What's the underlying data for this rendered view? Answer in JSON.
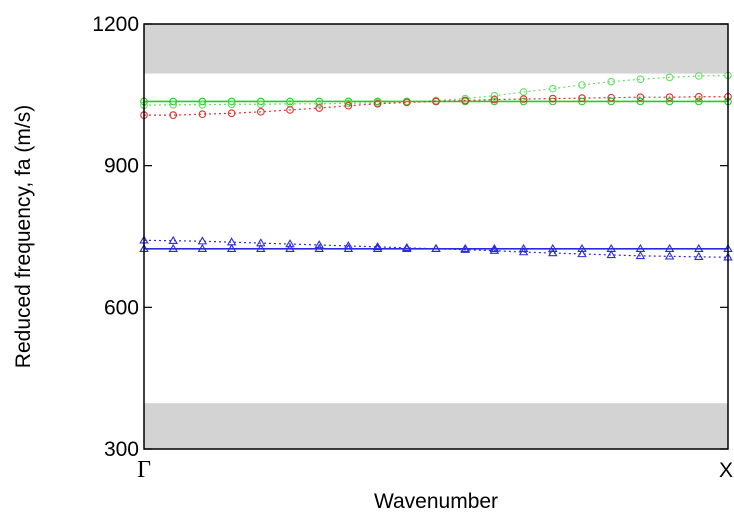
{
  "chart_data": {
    "type": "line",
    "title": "",
    "xlabel": "Wavenumber",
    "ylabel": "Reduced frequency, fa (m/s)",
    "x_tick_labels": [
      "Γ",
      "X"
    ],
    "xlim": [
      0,
      1
    ],
    "ylim": [
      300,
      1200
    ],
    "y_ticks": [
      300,
      600,
      900,
      1200
    ],
    "grid": false,
    "legend": "none",
    "band_gaps": [
      {
        "y0": 300,
        "y1": 397,
        "color": "#d3d3d3"
      },
      {
        "y0": 1095,
        "y1": 1200,
        "color": "#d3d3d3"
      }
    ],
    "x": [
      0,
      0.05,
      0.1,
      0.15,
      0.2,
      0.25,
      0.3,
      0.35,
      0.4,
      0.45,
      0.5,
      0.55,
      0.6,
      0.65,
      0.7,
      0.75,
      0.8,
      0.85,
      0.9,
      0.95,
      1
    ],
    "series": [
      {
        "style": "solid",
        "marker": "circle",
        "color": "#22cc22",
        "values": [
          1036,
          1036,
          1036,
          1036,
          1036,
          1036,
          1036,
          1036,
          1036,
          1036,
          1036,
          1036,
          1036,
          1036,
          1036,
          1036,
          1036,
          1036,
          1036,
          1036,
          1036
        ]
      },
      {
        "style": "dotted",
        "marker": "circle",
        "color": "#66e066",
        "values": [
          1028,
          1029,
          1029,
          1030,
          1030,
          1031,
          1031,
          1032,
          1033,
          1035,
          1038,
          1042,
          1048,
          1056,
          1063,
          1071,
          1078,
          1083,
          1087,
          1090,
          1091
        ]
      },
      {
        "style": "dotted",
        "marker": "circle",
        "color": "#e03030",
        "values": [
          1007,
          1007,
          1009,
          1011,
          1014,
          1018,
          1022,
          1027,
          1031,
          1034,
          1036,
          1038,
          1040,
          1041,
          1042,
          1043,
          1044,
          1045,
          1045,
          1046,
          1046
        ]
      },
      {
        "style": "solid",
        "marker": "triangle",
        "color": "#2a2ae0",
        "values": [
          724,
          724,
          724,
          724,
          724,
          724,
          724,
          724,
          724,
          724,
          724,
          724,
          724,
          724,
          724,
          724,
          724,
          724,
          724,
          724,
          724
        ]
      },
      {
        "style": "dotted",
        "marker": "triangle",
        "color": "#2a2ae0",
        "values": [
          742,
          741,
          740,
          738,
          736,
          734,
          732,
          730,
          728,
          726,
          724,
          722,
          720,
          717,
          715,
          713,
          711,
          709,
          708,
          707,
          706
        ]
      }
    ]
  }
}
